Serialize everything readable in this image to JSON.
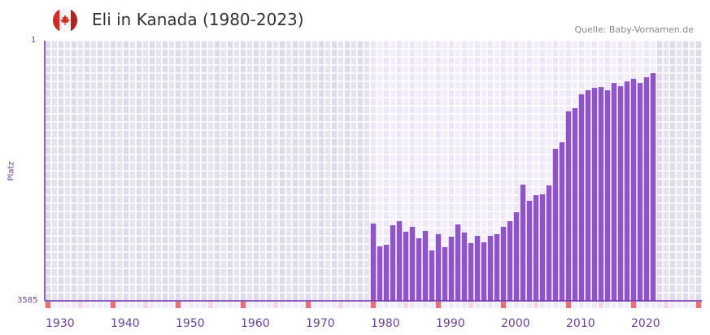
{
  "header": {
    "title": "Eli in Kanada (1980-2023)",
    "source": "Quelle: Baby-Vornamen.de",
    "flag_icon": "canada-flag-icon"
  },
  "chart_data": {
    "type": "bar",
    "title": "Eli in Kanada (1980-2023)",
    "xlabel": "",
    "ylabel": "Platz",
    "ylim": [
      1,
      3585
    ],
    "y_inverted": true,
    "y_tick_labels": [
      "1",
      "3585"
    ],
    "xlim": [
      1930,
      2030
    ],
    "x_tick_labels": [
      "1930",
      "1940",
      "1950",
      "1960",
      "1970",
      "1980",
      "1990",
      "2000",
      "2010",
      "2020"
    ],
    "grid": true,
    "bar_color": "#8e55c9",
    "years": [
      1980,
      1981,
      1982,
      1983,
      1984,
      1985,
      1986,
      1987,
      1988,
      1989,
      1990,
      1991,
      1992,
      1993,
      1994,
      1995,
      1996,
      1997,
      1998,
      1999,
      2000,
      2001,
      2002,
      2003,
      2004,
      2005,
      2006,
      2007,
      2008,
      2009,
      2010,
      2011,
      2012,
      2013,
      2014,
      2015,
      2016,
      2017,
      2018,
      2019,
      2020,
      2021,
      2022,
      2023
    ],
    "ranks": [
      1772,
      2241,
      2206,
      1804,
      1726,
      1934,
      1836,
      2068,
      1917,
      2331,
      1983,
      2259,
      2034,
      1789,
      1950,
      2171,
      2017,
      2154,
      2017,
      1983,
      1836,
      1726,
      1559,
      1098,
      1359,
      1265,
      1251,
      1110,
      620,
      548,
      266,
      242,
      153,
      131,
      119,
      115,
      131,
      96,
      111,
      89,
      78,
      96,
      72,
      57
    ]
  }
}
